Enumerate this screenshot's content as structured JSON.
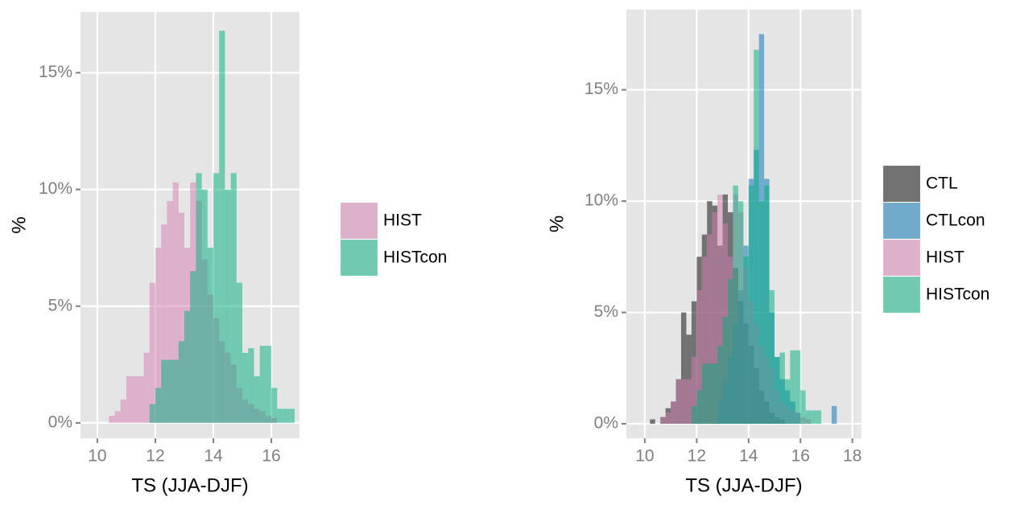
{
  "chart_data": [
    {
      "type": "histogram",
      "xlabel": "TS (JJA-DJF)",
      "ylabel": "%",
      "bins": [
        10.4,
        10.6,
        10.8,
        11.0,
        11.2,
        11.4,
        11.6,
        11.8,
        12.0,
        12.2,
        12.4,
        12.6,
        12.8,
        13.0,
        13.2,
        13.4,
        13.6,
        13.8,
        14.0,
        14.2,
        14.4,
        14.6,
        14.8,
        15.0,
        15.2,
        15.4,
        15.6,
        15.8,
        16.0,
        16.2,
        16.4,
        16.6,
        16.8
      ],
      "series": [
        {
          "name": "HIST",
          "color": "#d57bb3",
          "values": [
            0.3,
            0.5,
            1.0,
            2.0,
            2.0,
            2.0,
            3.0,
            6.0,
            7.5,
            8.5,
            9.5,
            10.3,
            9.0,
            7.5,
            10.3,
            9.5,
            7.0,
            5.5,
            4.5,
            3.5,
            3.0,
            2.5,
            1.5,
            1.0,
            0.8,
            0.6,
            0.5,
            0.3,
            0.2,
            0,
            0,
            0
          ]
        },
        {
          "name": "HISTcon",
          "color": "#00ad7f",
          "values": [
            0,
            0,
            0,
            0,
            0,
            0,
            0,
            0.8,
            1.5,
            2.7,
            2.7,
            2.7,
            3.5,
            4.8,
            6.5,
            10.7,
            10.0,
            7.5,
            10.7,
            16.8,
            10.0,
            10.7,
            6.0,
            3.0,
            3.2,
            2.0,
            3.3,
            3.3,
            1.5,
            0.6,
            0.6,
            0.6
          ]
        }
      ],
      "alpha": 0.5,
      "xlim": [
        9.42,
        16.97
      ],
      "xticks": [
        10,
        12,
        14,
        16
      ],
      "ylim": [
        -0.66,
        17.6
      ],
      "yticks": [
        {
          "value": 0,
          "label": "0%"
        },
        {
          "value": 5,
          "label": "5%"
        },
        {
          "value": 10,
          "label": "10%"
        },
        {
          "value": 15,
          "label": "15%"
        }
      ],
      "grid": true,
      "legend": "right"
    },
    {
      "type": "histogram",
      "xlabel": "TS (JJA-DJF)",
      "ylabel": "%",
      "bins": [
        10.2,
        10.4,
        10.6,
        10.8,
        11.0,
        11.2,
        11.4,
        11.6,
        11.8,
        12.0,
        12.2,
        12.4,
        12.6,
        12.8,
        13.0,
        13.2,
        13.4,
        13.6,
        13.8,
        14.0,
        14.2,
        14.4,
        14.6,
        14.8,
        15.0,
        15.2,
        15.4,
        15.6,
        15.8,
        16.0,
        16.2,
        16.4,
        16.6,
        16.8,
        17.0,
        17.2,
        17.4,
        17.6
      ],
      "series": [
        {
          "name": "CTL",
          "color": "#000000",
          "values": [
            0.2,
            0,
            0.3,
            0.7,
            1.0,
            2.0,
            5.0,
            4.0,
            5.5,
            7.5,
            8.5,
            10.0,
            9.8,
            8.0,
            10.3,
            9.5,
            7.0,
            5.5,
            4.5,
            3.5,
            2.5,
            1.5,
            1.0,
            0.5,
            0.3,
            0.2,
            0,
            0,
            0,
            0,
            0,
            0,
            0,
            0,
            0,
            0,
            0
          ]
        },
        {
          "name": "CTLcon",
          "color": "#006fb3",
          "values": [
            0,
            0,
            0,
            0,
            0,
            0,
            0,
            0,
            0,
            0,
            0,
            0,
            0,
            1.0,
            2.0,
            3.0,
            4.5,
            6.0,
            8.0,
            11.0,
            12.3,
            17.5,
            11.0,
            5.0,
            3.0,
            2.0,
            1.5,
            1.0,
            0.5,
            0,
            0,
            0,
            0,
            0,
            0,
            0.8,
            0
          ]
        },
        {
          "name": "HIST",
          "color": "#d57bb3",
          "values": [
            0,
            0,
            0.3,
            0.5,
            1.0,
            2.0,
            2.0,
            2.0,
            3.0,
            6.0,
            7.5,
            8.5,
            9.5,
            10.3,
            9.0,
            7.5,
            10.3,
            9.5,
            7.0,
            5.5,
            4.5,
            3.5,
            3.0,
            2.5,
            1.5,
            1.0,
            0.8,
            0.6,
            0.5,
            0.3,
            0.2,
            0,
            0,
            0,
            0,
            0,
            0
          ]
        },
        {
          "name": "HISTcon",
          "color": "#00ad7f",
          "values": [
            0,
            0,
            0,
            0,
            0,
            0,
            0,
            0,
            0.8,
            1.5,
            2.7,
            2.7,
            2.7,
            3.5,
            4.8,
            6.5,
            10.7,
            10.0,
            7.5,
            10.7,
            16.8,
            10.0,
            10.7,
            6.0,
            3.0,
            3.2,
            2.0,
            3.3,
            3.3,
            1.5,
            0.6,
            0.6,
            0.6,
            0,
            0,
            0,
            0
          ]
        }
      ],
      "alpha": 0.5,
      "xlim": [
        9.29,
        18.35
      ],
      "xticks": [
        10,
        12,
        14,
        16,
        18
      ],
      "ylim": [
        -0.65,
        18.6
      ],
      "yticks": [
        {
          "value": 0,
          "label": "0%"
        },
        {
          "value": 5,
          "label": "5%"
        },
        {
          "value": 10,
          "label": "10%"
        },
        {
          "value": 15,
          "label": "15%"
        }
      ],
      "grid": true,
      "legend": "right"
    }
  ]
}
